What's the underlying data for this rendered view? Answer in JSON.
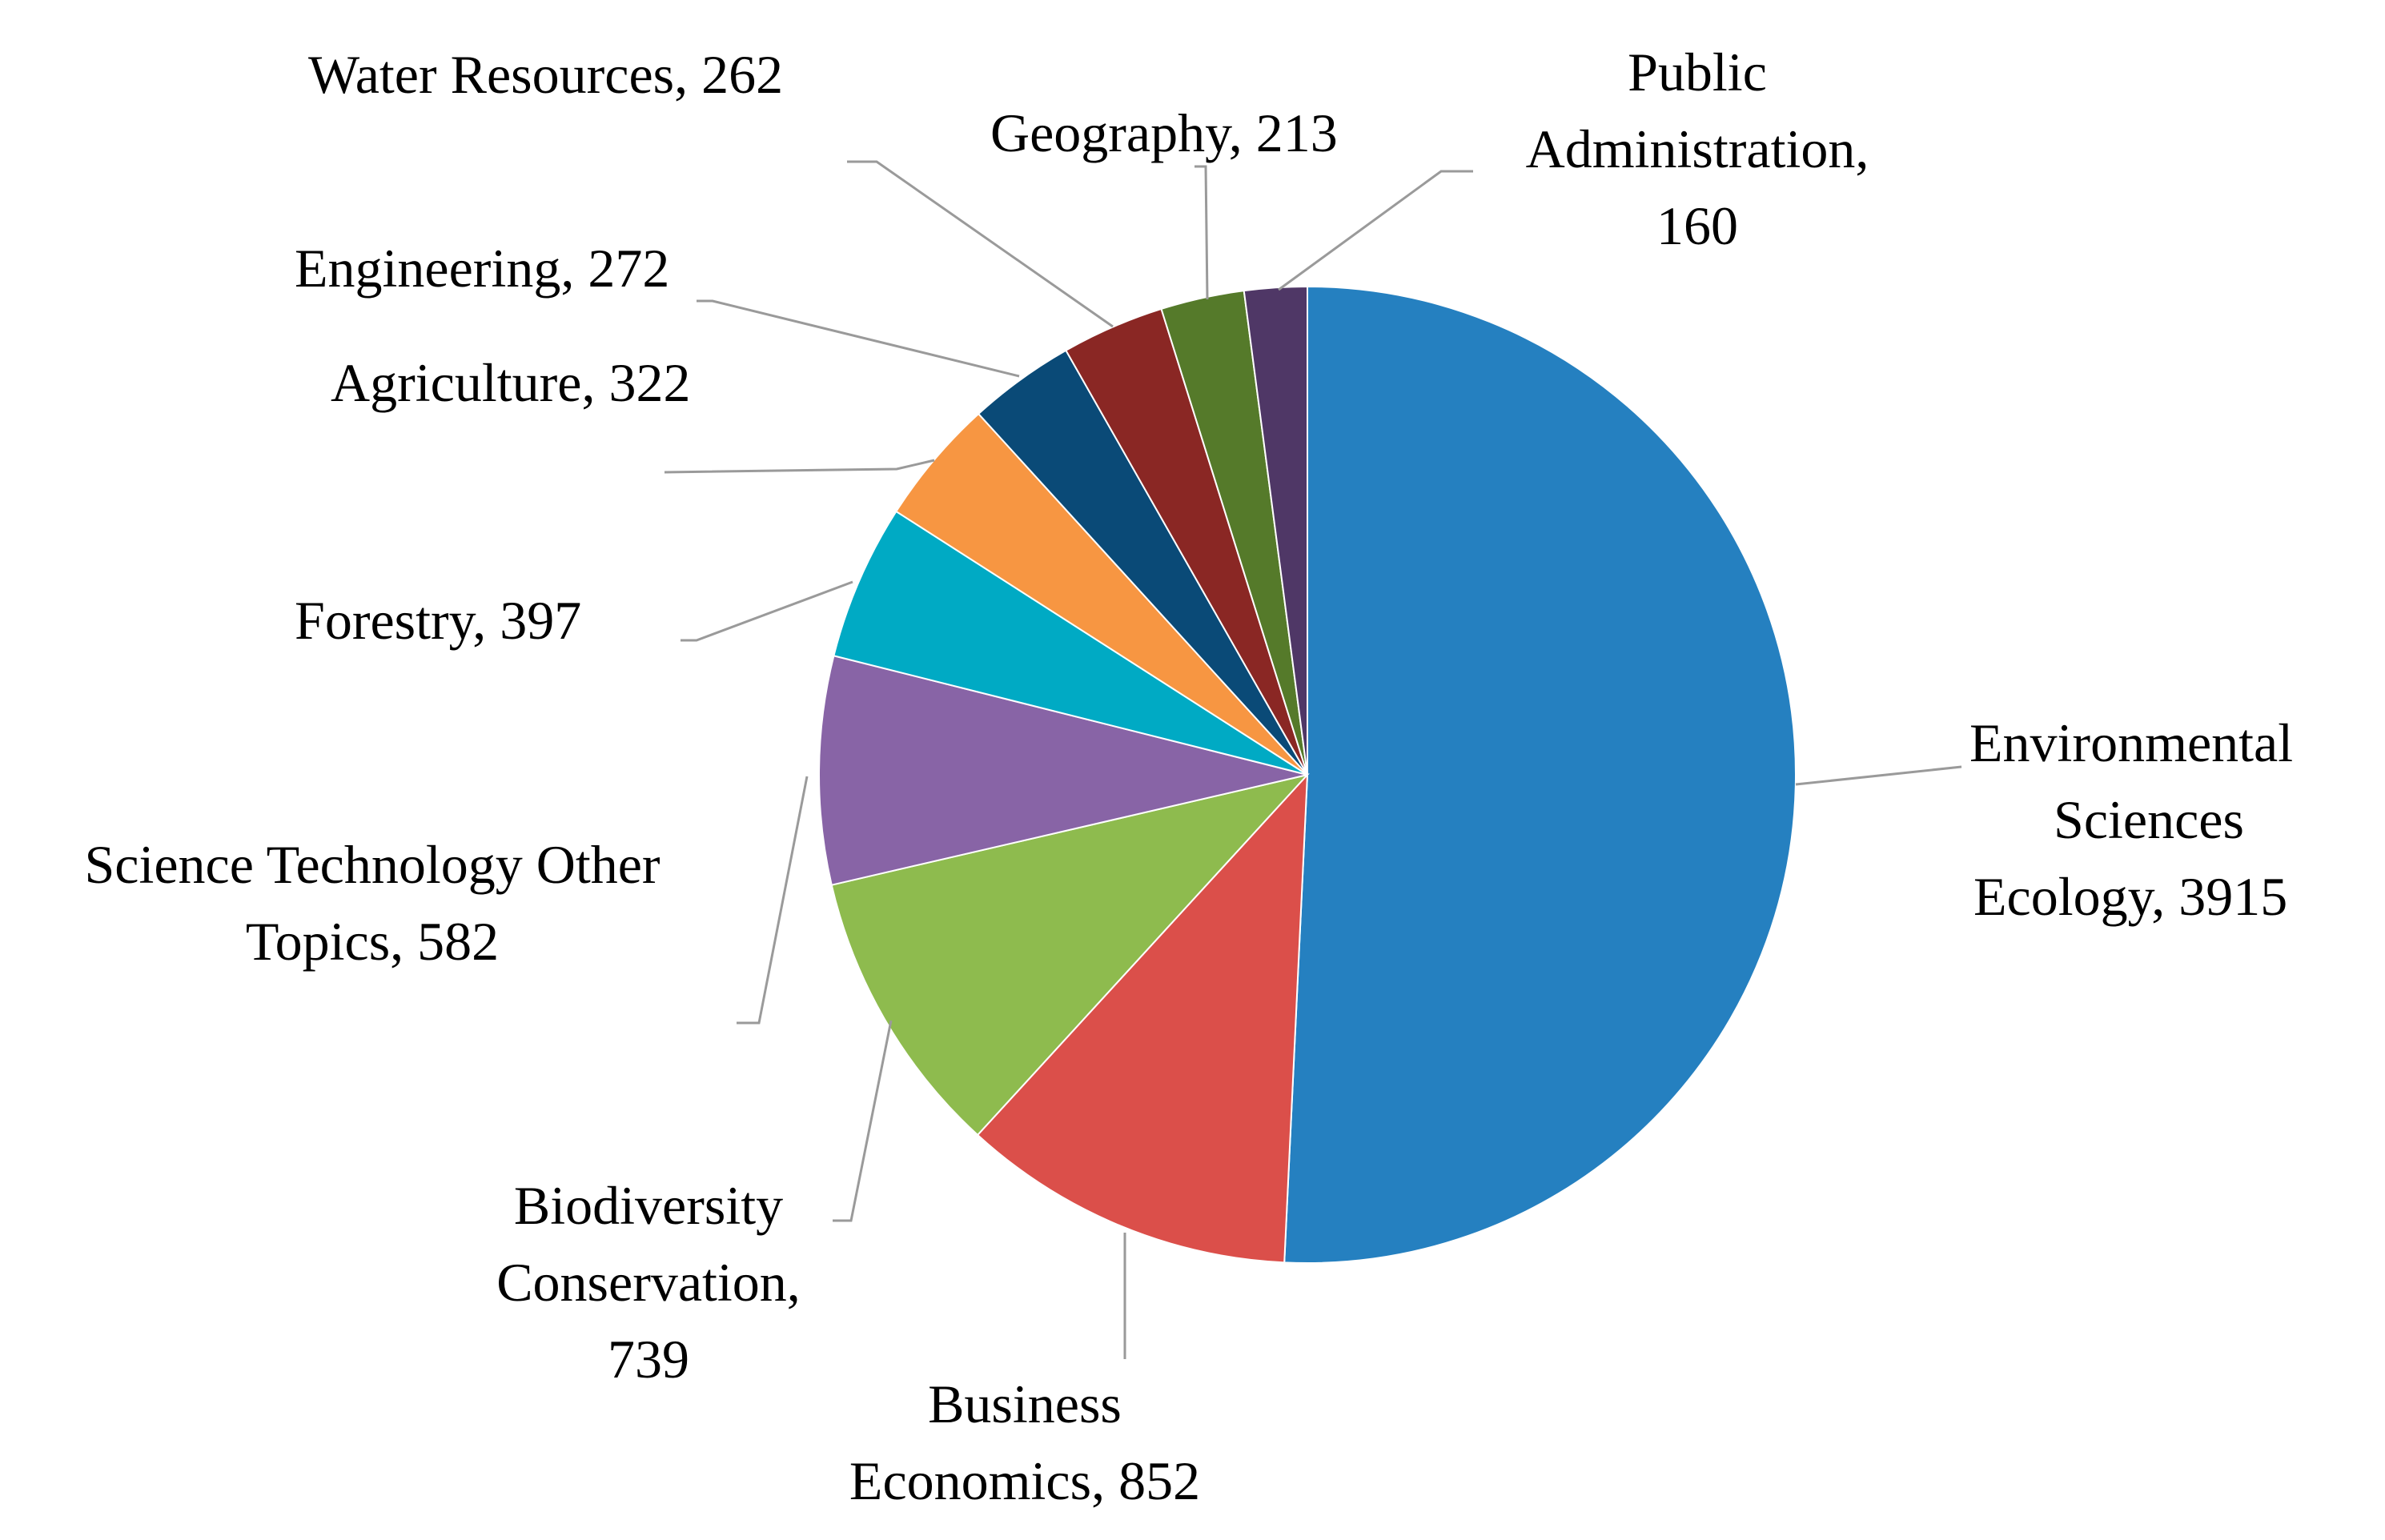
{
  "chart_data": {
    "type": "pie",
    "title": "",
    "start_angle_deg": 0,
    "direction": "clockwise",
    "categories": [
      "Environmental Sciences Ecology",
      "Business Economics",
      "Biodiversity Conservation",
      "Science Technology Other Topics",
      "Forestry",
      "Agriculture",
      "Engineering",
      "Water Resources",
      "Geography",
      "Public Administration"
    ],
    "values": [
      3915,
      852,
      739,
      582,
      397,
      322,
      272,
      262,
      213,
      160
    ],
    "colors": [
      "#2580C0",
      "#DB4F4A",
      "#8EBB4E",
      "#8864A6",
      "#00AAC4",
      "#F79642",
      "#0A4A77",
      "#8A2724",
      "#557A2A",
      "#4F3766"
    ],
    "labels": [
      {
        "lines": [
          "Environmental",
          "Sciences",
          "Ecology, 3915"
        ]
      },
      {
        "lines": [
          "Business",
          "Economics, 852"
        ]
      },
      {
        "lines": [
          "Biodiversity",
          "Conservation,",
          "739"
        ]
      },
      {
        "lines": [
          "Science Technology Other",
          "Topics, 582"
        ]
      },
      {
        "lines": [
          "Forestry, 397"
        ]
      },
      {
        "lines": [
          "Agriculture, 322"
        ]
      },
      {
        "lines": [
          "Engineering, 272"
        ]
      },
      {
        "lines": [
          "Water Resources, 262"
        ]
      },
      {
        "lines": [
          "Geography, 213"
        ]
      },
      {
        "lines": [
          "Public",
          "Administration,",
          "160"
        ]
      }
    ]
  }
}
